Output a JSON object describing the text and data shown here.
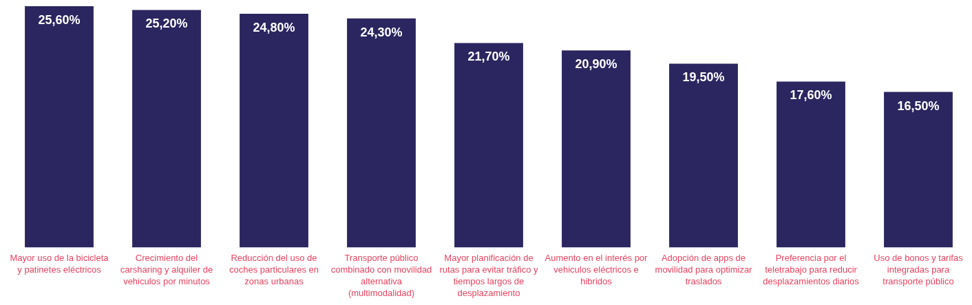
{
  "chart_data": {
    "type": "bar",
    "categories": [
      "Mayor uso de la bicicleta y patinetes eléctricos",
      "Crecimiento del carsharing y alquiler de vehiculos por minutos",
      "Reducción del uso de coches particulares en zonas urbanas",
      "Transporte público combinado con movilidad alternativa (multimodalidad)",
      "Mayor planificación de rutas para evitar tráfico y tiempos largos de desplazamiento",
      "Aumento en el interés por vehiculos eléctricos e hibridos",
      "Adopción de apps de movilidad para optimizar traslados",
      "Preferencia por el teletrabajo para reducir desplazamientos diarios",
      "Uso de bonos y tarifas integradas para transporte público"
    ],
    "values": [
      25.6,
      25.2,
      24.8,
      24.3,
      21.7,
      20.9,
      19.5,
      17.6,
      16.5
    ],
    "value_labels": [
      "25,60%",
      "25,20%",
      "24,80%",
      "24,30%",
      "21,70%",
      "20,90%",
      "19,50%",
      "17,60%",
      "16,50%"
    ],
    "color": "#2b2660",
    "grid": false,
    "legend": false
  }
}
